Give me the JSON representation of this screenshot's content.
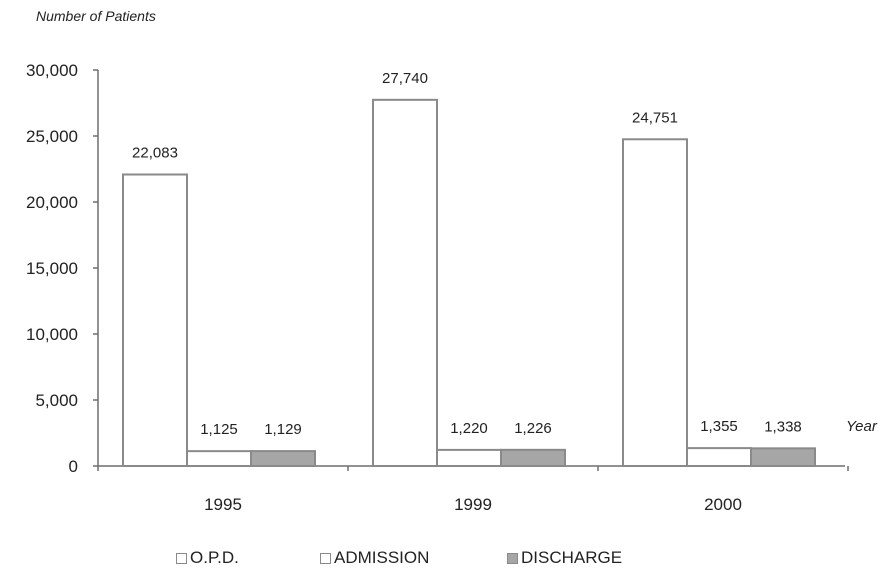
{
  "chart_data": {
    "type": "bar",
    "ylabel": "Number of Patients",
    "xlabel": "Year",
    "categories": [
      "1995",
      "1999",
      "2000"
    ],
    "series": [
      {
        "name": "O.P.D.",
        "values": [
          22083,
          27740,
          24751
        ],
        "color": "#ffffff",
        "stroke": "#8a8a8a"
      },
      {
        "name": "ADMISSION",
        "values": [
          1125,
          1220,
          1355
        ],
        "color": "#ffffff",
        "stroke": "#8a8a8a"
      },
      {
        "name": "DISCHARGE",
        "values": [
          1129,
          1226,
          1338
        ],
        "color": "#a6a6a6",
        "stroke": "#8a8a8a"
      }
    ],
    "value_labels": [
      [
        "22,083",
        "27,740",
        "24,751"
      ],
      [
        "1,125",
        "1,220",
        "1,355"
      ],
      [
        "1,129",
        "1,226",
        "1,338"
      ]
    ],
    "yticks": [
      "0",
      "5,000",
      "10,000",
      "15,000",
      "20,000",
      "25,000",
      "30,000"
    ],
    "ylim": [
      0,
      30000
    ],
    "grid": false,
    "legend": "bottom"
  }
}
